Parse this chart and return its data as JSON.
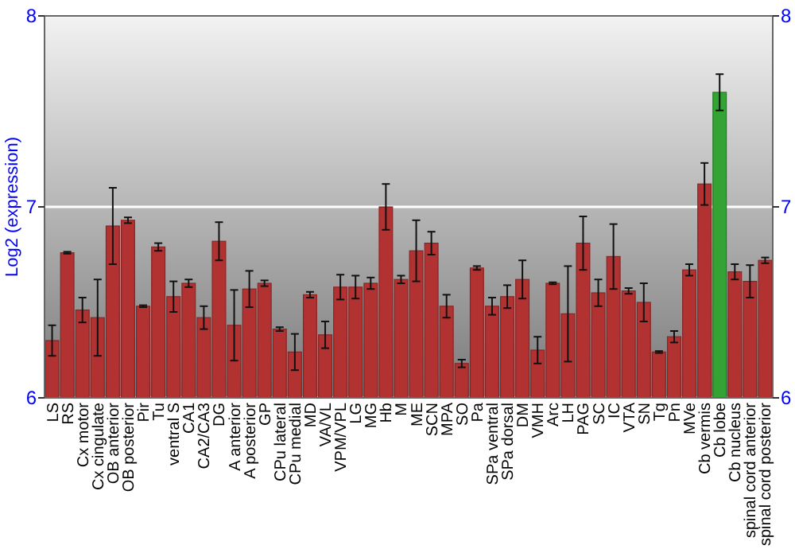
{
  "chart_data": {
    "type": "bar",
    "ylabel": "Log2 (expression)",
    "categories": [
      "LS",
      "RS",
      "Cx motor",
      "Cx cingulate",
      "OB anterior",
      "OB posterior",
      "Pir",
      "Tu",
      "ventral S",
      "CA1",
      "CA2/CA3",
      "DG",
      "A anterior",
      "A posterior",
      "GP",
      "CPu lateral",
      "CPu medial",
      "MD",
      "VA/VL",
      "VPM/VPL",
      "LG",
      "MG",
      "Hb",
      "M",
      "ME",
      "SCN",
      "MPA",
      "SO",
      "Pa",
      "SPa ventral",
      "SPa dorsal",
      "DM",
      "VMH",
      "Arc",
      "LH",
      "PAG",
      "SC",
      "IC",
      "VTA",
      "SN",
      "Tg",
      "Pn",
      "MVe",
      "Cb vermis",
      "Cb lobe",
      "Cb nucleus",
      "spinal cord anterior",
      "spinal cord posterior"
    ],
    "values": [
      6.3,
      6.76,
      6.46,
      6.42,
      6.9,
      6.93,
      6.48,
      6.79,
      6.53,
      6.6,
      6.42,
      6.82,
      6.38,
      6.57,
      6.6,
      6.36,
      6.24,
      6.54,
      6.33,
      6.58,
      6.58,
      6.6,
      7.0,
      6.62,
      6.77,
      6.81,
      6.48,
      6.18,
      6.68,
      6.48,
      6.53,
      6.62,
      6.25,
      6.6,
      6.44,
      6.81,
      6.55,
      6.74,
      6.56,
      6.5,
      6.24,
      6.32,
      6.67,
      7.12,
      7.6,
      6.66,
      6.61,
      6.72
    ],
    "errors": [
      0.08,
      0.005,
      0.065,
      0.2,
      0.2,
      0.015,
      0.005,
      0.02,
      0.08,
      0.02,
      0.06,
      0.1,
      0.185,
      0.095,
      0.015,
      0.01,
      0.095,
      0.015,
      0.07,
      0.065,
      0.06,
      0.03,
      0.12,
      0.02,
      0.16,
      0.06,
      0.06,
      0.02,
      0.01,
      0.045,
      0.06,
      0.1,
      0.07,
      0.005,
      0.25,
      0.14,
      0.07,
      0.17,
      0.015,
      0.1,
      0.005,
      0.03,
      0.03,
      0.11,
      0.095,
      0.04,
      0.085,
      0.015
    ],
    "colors": [
      "#b23232",
      "#b23232",
      "#b23232",
      "#b23232",
      "#b23232",
      "#b23232",
      "#b23232",
      "#b23232",
      "#b23232",
      "#b23232",
      "#b23232",
      "#b23232",
      "#b23232",
      "#b23232",
      "#b23232",
      "#b23232",
      "#b23232",
      "#b23232",
      "#b23232",
      "#b23232",
      "#b23232",
      "#b23232",
      "#b23232",
      "#b23232",
      "#b23232",
      "#b23232",
      "#b23232",
      "#b23232",
      "#b23232",
      "#b23232",
      "#b23232",
      "#b23232",
      "#b23232",
      "#b23232",
      "#b23232",
      "#b23232",
      "#b23232",
      "#b23232",
      "#b23232",
      "#b23232",
      "#b23232",
      "#b23232",
      "#b23232",
      "#b23232",
      "#33a333",
      "#b23232",
      "#b23232",
      "#b23232"
    ],
    "ylim": [
      6,
      8
    ],
    "yticks": [
      6,
      7,
      8
    ],
    "y2lim": [
      6,
      8
    ],
    "y2ticks": [
      6,
      7,
      8
    ],
    "grid": "y"
  }
}
